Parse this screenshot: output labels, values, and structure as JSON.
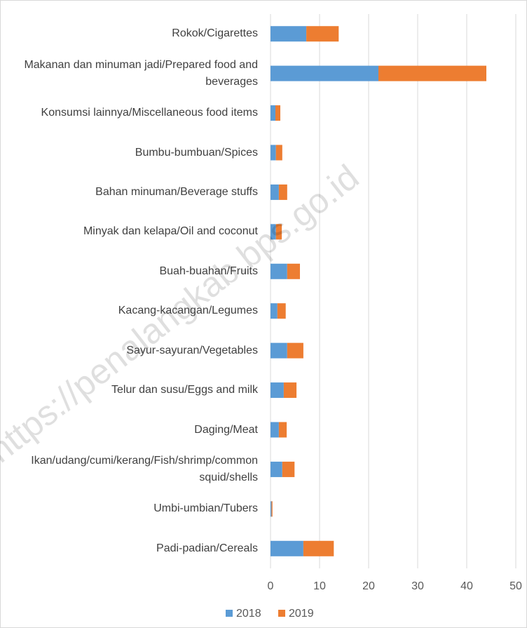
{
  "chart_data": {
    "type": "stacked_barh",
    "watermark": "https://penalangkab.bps.go.id",
    "categories": [
      "Rokok/Cigarettes",
      "Makanan dan minuman jadi/Prepared food and beverages",
      "Konsumsi lainnya/Miscellaneous food items",
      "Bumbu-bumbuan/Spices",
      "Bahan minuman/Beverage stuffs",
      "Minyak dan kelapa/Oil and coconut",
      "Buah-buahan/Fruits",
      "Kacang-kacangan/Legumes",
      "Sayur-sayuran/Vegetables",
      "Telur dan susu/Eggs and milk",
      "Daging/Meat",
      "Ikan/udang/cumi/kerang/Fish/shrimp/common squid/shells",
      "Umbi-umbian/Tubers",
      "Padi-padian/Cereals"
    ],
    "series": [
      {
        "name": "2018",
        "color": "#5b9bd5",
        "values": [
          7.3,
          22.0,
          1.0,
          1.1,
          1.7,
          1.1,
          3.4,
          1.4,
          3.4,
          2.7,
          1.7,
          2.4,
          0.2,
          6.7
        ]
      },
      {
        "name": "2019",
        "color": "#ed7d31",
        "values": [
          6.6,
          22.0,
          1.0,
          1.3,
          1.7,
          1.2,
          2.6,
          1.7,
          3.3,
          2.6,
          1.6,
          2.5,
          0.2,
          6.2
        ]
      }
    ],
    "xlim": [
      0,
      50
    ],
    "xticks": [
      0,
      10,
      20,
      30,
      40,
      50
    ],
    "grid": true,
    "legend": "bottom"
  }
}
